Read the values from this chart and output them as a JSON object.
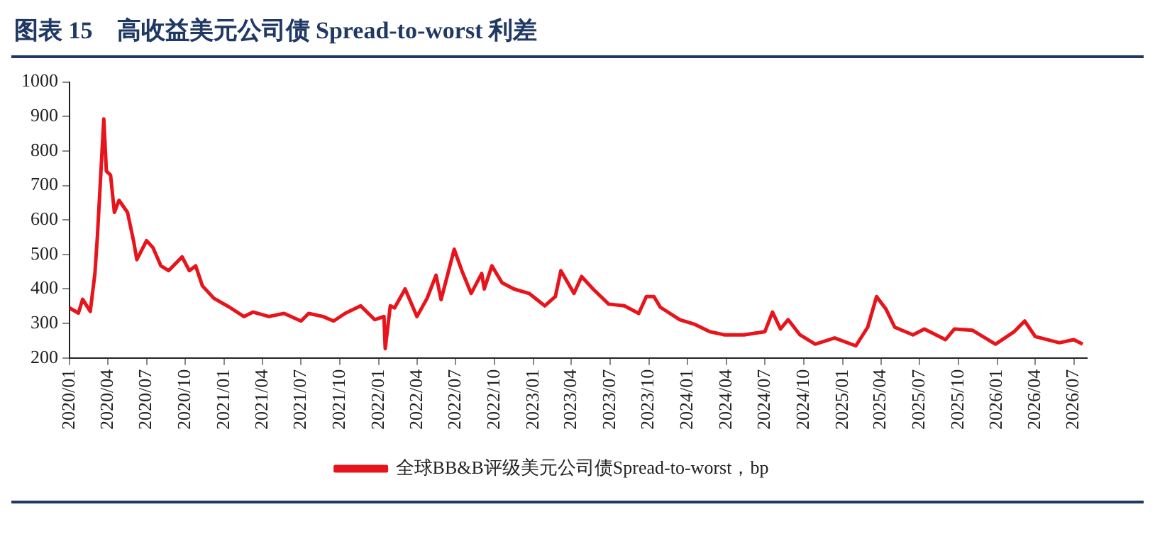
{
  "chart_data": {
    "type": "line",
    "title": "图表 15　高收益美元公司债 Spread-to-worst 利差",
    "series": [
      {
        "name": "全球BB&B评级美元公司债Spread-to-worst，bp",
        "color": "#e8141c",
        "x": [
          "2020-01-01",
          "2020-01-22",
          "2020-02-01",
          "2020-02-19",
          "2020-03-01",
          "2020-03-07",
          "2020-03-22",
          "2020-03-28",
          "2020-04-07",
          "2020-04-16",
          "2020-04-27",
          "2020-05-17",
          "2020-06-01",
          "2020-06-08",
          "2020-07-01",
          "2020-07-16",
          "2020-08-04",
          "2020-08-22",
          "2020-09-23",
          "2020-10-10",
          "2020-10-25",
          "2020-11-10",
          "2020-12-07",
          "2021-01-13",
          "2021-02-16",
          "2021-03-10",
          "2021-04-16",
          "2021-05-22",
          "2021-07-01",
          "2021-07-19",
          "2021-08-22",
          "2021-09-16",
          "2021-10-13",
          "2021-11-19",
          "2021-12-22",
          "2022-01-13",
          "2022-01-16",
          "2022-01-28",
          "2022-02-07",
          "2022-03-04",
          "2022-04-01",
          "2022-04-25",
          "2022-05-16",
          "2022-05-28",
          "2022-06-28",
          "2022-07-16",
          "2022-08-07",
          "2022-09-01",
          "2022-09-07",
          "2022-09-25",
          "2022-10-19",
          "2022-11-16",
          "2022-12-22",
          "2023-01-28",
          "2023-02-22",
          "2023-03-07",
          "2023-04-07",
          "2023-04-25",
          "2023-05-22",
          "2023-06-28",
          "2023-08-04",
          "2023-09-07",
          "2023-09-25",
          "2023-10-13",
          "2023-10-28",
          "2023-12-13",
          "2024-01-16",
          "2024-02-22",
          "2024-03-28",
          "2024-05-13",
          "2024-07-01",
          "2024-07-19",
          "2024-08-07",
          "2024-08-25",
          "2024-09-22",
          "2024-10-28",
          "2024-12-13",
          "2025-02-01",
          "2025-03-01",
          "2025-03-22",
          "2025-04-13",
          "2025-05-04",
          "2025-06-16",
          "2025-07-13",
          "2025-09-01",
          "2025-09-22",
          "2025-11-04",
          "2025-12-28",
          "2026-02-10",
          "2026-03-07",
          "2026-04-01",
          "2026-05-28",
          "2026-07-01",
          "2026-07-22"
        ],
        "values": [
          345,
          330,
          370,
          335,
          445,
          555,
          893,
          742,
          730,
          622,
          657,
          622,
          535,
          485,
          540,
          520,
          467,
          453,
          493,
          453,
          467,
          409,
          373,
          347,
          320,
          333,
          320,
          329,
          307,
          329,
          320,
          307,
          329,
          351,
          311,
          320,
          227,
          351,
          345,
          400,
          320,
          373,
          440,
          369,
          515,
          453,
          387,
          445,
          400,
          467,
          418,
          400,
          387,
          351,
          378,
          453,
          387,
          436,
          400,
          356,
          351,
          329,
          378,
          378,
          347,
          311,
          298,
          276,
          267,
          267,
          276,
          333,
          284,
          311,
          267,
          240,
          258,
          235,
          289,
          378,
          342,
          289,
          267,
          284,
          253,
          284,
          280,
          240,
          276,
          307,
          262,
          244,
          253,
          240
        ]
      }
    ],
    "xlim": [
      "2020-01-01",
      "2026-08-01"
    ],
    "xticks": [
      {
        "value": "2020-01-01",
        "label": "2020/01"
      },
      {
        "value": "2020-04-01",
        "label": "2020/04"
      },
      {
        "value": "2020-07-01",
        "label": "2020/07"
      },
      {
        "value": "2020-10-01",
        "label": "2020/10"
      },
      {
        "value": "2021-01-01",
        "label": "2021/01"
      },
      {
        "value": "2021-04-01",
        "label": "2021/04"
      },
      {
        "value": "2021-07-01",
        "label": "2021/07"
      },
      {
        "value": "2021-10-01",
        "label": "2021/10"
      },
      {
        "value": "2022-01-01",
        "label": "2022/01"
      },
      {
        "value": "2022-04-01",
        "label": "2022/04"
      },
      {
        "value": "2022-07-01",
        "label": "2022/07"
      },
      {
        "value": "2022-10-01",
        "label": "2022/10"
      },
      {
        "value": "2023-01-01",
        "label": "2023/01"
      },
      {
        "value": "2023-04-01",
        "label": "2023/04"
      },
      {
        "value": "2023-07-01",
        "label": "2023/07"
      },
      {
        "value": "2023-10-01",
        "label": "2023/10"
      },
      {
        "value": "2024-01-01",
        "label": "2024/01"
      },
      {
        "value": "2024-04-01",
        "label": "2024/04"
      },
      {
        "value": "2024-07-01",
        "label": "2024/07"
      },
      {
        "value": "2024-10-01",
        "label": "2024/10"
      },
      {
        "value": "2025-01-01",
        "label": "2025/01"
      },
      {
        "value": "2025-04-01",
        "label": "2025/04"
      },
      {
        "value": "2025-07-01",
        "label": "2025/07"
      },
      {
        "value": "2025-10-01",
        "label": "2025/10"
      },
      {
        "value": "2026-01-01",
        "label": "2026/01"
      },
      {
        "value": "2026-04-01",
        "label": "2026/04"
      },
      {
        "value": "2026-07-01",
        "label": "2026/07"
      }
    ],
    "ylim": [
      200,
      1000
    ],
    "yticks": [
      200,
      300,
      400,
      500,
      600,
      700,
      800,
      900,
      1000
    ],
    "grid": false,
    "legend": "bottom",
    "marker": "none",
    "line_style": "solid"
  }
}
